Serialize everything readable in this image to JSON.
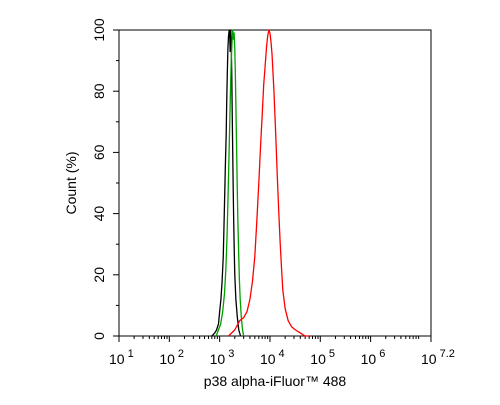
{
  "chart_data": {
    "type": "line",
    "title": "",
    "xlabel": "p38 alpha-iFluor™ 488",
    "ylabel": "Count  (%)",
    "x_scale": "log10",
    "xlim": [
      10,
      15848931.92
    ],
    "ylim": [
      0,
      100
    ],
    "x_ticks": [
      {
        "value": 10,
        "base": "10",
        "exp": "1"
      },
      {
        "value": 100,
        "base": "10",
        "exp": "2"
      },
      {
        "value": 1000,
        "base": "10",
        "exp": "3"
      },
      {
        "value": 10000,
        "base": "10",
        "exp": "4"
      },
      {
        "value": 100000,
        "base": "10",
        "exp": "5"
      },
      {
        "value": 1000000,
        "base": "10",
        "exp": "6"
      },
      {
        "value": 15848931.92,
        "base": "10",
        "exp": "7.2"
      }
    ],
    "y_ticks": [
      "0",
      "20",
      "40",
      "60",
      "80",
      "100"
    ],
    "grid": false,
    "legend": "none",
    "series": [
      {
        "color": "#000000",
        "x": [
          700,
          800,
          870,
          950,
          1000,
          1060,
          1120,
          1180,
          1220,
          1260,
          1300,
          1350,
          1380,
          1420,
          1460,
          1500,
          1550,
          1580,
          1620,
          1660,
          1700,
          1740,
          1780,
          1820,
          1860,
          1900,
          1950,
          2000,
          2100,
          2250,
          2400,
          2600
        ],
        "y": [
          0,
          1,
          2,
          4,
          8,
          12,
          18,
          26,
          36,
          46,
          56,
          66,
          76,
          86,
          94,
          98,
          100,
          99,
          93,
          100,
          95,
          86,
          72,
          60,
          48,
          38,
          28,
          20,
          12,
          6,
          2,
          0
        ]
      },
      {
        "color": "#00a000",
        "x": [
          850,
          950,
          1050,
          1150,
          1250,
          1330,
          1400,
          1460,
          1520,
          1580,
          1640,
          1700,
          1760,
          1820,
          1880,
          1940,
          2000,
          2060,
          2120,
          2180,
          2240,
          2300,
          2380,
          2460,
          2560,
          2700,
          2850,
          3000
        ],
        "y": [
          0,
          2,
          4,
          8,
          14,
          22,
          32,
          44,
          56,
          68,
          80,
          90,
          96,
          100,
          97,
          99,
          94,
          84,
          72,
          60,
          48,
          38,
          28,
          19,
          12,
          6,
          2,
          0
        ]
      },
      {
        "color": "#ff0000",
        "x": [
          1500,
          2000,
          2500,
          3000,
          3500,
          4000,
          4500,
          5000,
          5500,
          6000,
          6500,
          7000,
          7500,
          8000,
          8500,
          9000,
          9500,
          10000,
          10500,
          11000,
          12000,
          13000,
          14000,
          15000,
          16000,
          17000,
          18000,
          20000,
          23000,
          27000,
          32000,
          40000,
          50000,
          60000
        ],
        "y": [
          0,
          2,
          5,
          6,
          8,
          12,
          18,
          26,
          38,
          50,
          62,
          72,
          82,
          88,
          94,
          98,
          100,
          99,
          96,
          92,
          80,
          66,
          52,
          40,
          30,
          22,
          15,
          9,
          5,
          3,
          2,
          1,
          0,
          0
        ]
      }
    ]
  }
}
